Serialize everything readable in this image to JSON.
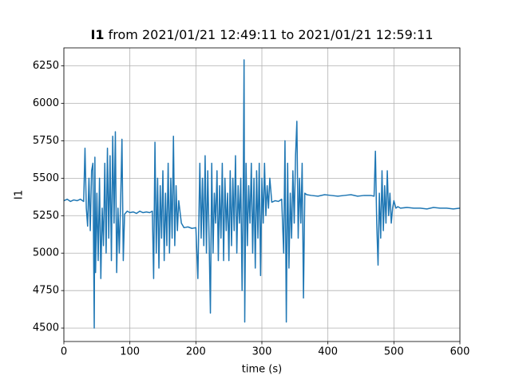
{
  "chart_data": {
    "type": "line",
    "title": [
      "I1",
      "from 2021/01/21 12:49:11 to 2021/01/21 12:59:11"
    ],
    "xlabel": "time (s)",
    "ylabel": "I1",
    "color": "#1f77b4",
    "grid": true,
    "xlim": [
      0,
      600
    ],
    "xticks": [
      0,
      100,
      200,
      300,
      400,
      500,
      600
    ],
    "ylim": [
      4410,
      6370
    ],
    "yticks": [
      4500,
      4750,
      5000,
      5250,
      5500,
      5750,
      6000,
      6250
    ],
    "x": [
      0,
      5,
      10,
      15,
      20,
      25,
      30,
      32,
      34,
      36,
      38,
      40,
      42,
      44,
      46,
      47,
      48,
      50,
      52,
      54,
      56,
      58,
      60,
      62,
      64,
      66,
      68,
      70,
      72,
      74,
      76,
      78,
      80,
      82,
      84,
      86,
      88,
      90,
      92,
      96,
      100,
      105,
      110,
      115,
      120,
      125,
      130,
      134,
      136,
      138,
      140,
      142,
      144,
      146,
      148,
      150,
      152,
      154,
      156,
      158,
      160,
      162,
      164,
      166,
      168,
      170,
      172,
      174,
      178,
      182,
      188,
      194,
      200,
      203,
      206,
      208,
      210,
      212,
      214,
      216,
      218,
      220,
      222,
      224,
      226,
      228,
      230,
      232,
      234,
      236,
      238,
      240,
      242,
      244,
      246,
      248,
      250,
      252,
      254,
      256,
      258,
      260,
      262,
      264,
      266,
      268,
      270,
      272,
      273,
      274,
      276,
      278,
      280,
      282,
      284,
      286,
      288,
      290,
      292,
      294,
      296,
      298,
      300,
      302,
      304,
      306,
      308,
      310,
      312,
      315,
      320,
      325,
      330,
      333,
      335,
      337,
      339,
      341,
      343,
      345,
      347,
      349,
      351,
      353,
      355,
      357,
      359,
      361,
      363,
      365,
      368,
      375,
      385,
      395,
      405,
      415,
      425,
      435,
      445,
      455,
      465,
      470,
      472,
      474,
      476,
      478,
      480,
      482,
      484,
      486,
      488,
      490,
      492,
      494,
      496,
      498,
      500,
      503,
      506,
      510,
      520,
      530,
      540,
      550,
      560,
      570,
      580,
      590,
      600
    ],
    "values": [
      5350,
      5360,
      5345,
      5355,
      5350,
      5360,
      5345,
      5700,
      5300,
      5180,
      5500,
      5150,
      5550,
      5600,
      4500,
      5640,
      4870,
      5400,
      4950,
      5500,
      4830,
      5300,
      5050,
      5600,
      5000,
      5700,
      5100,
      5650,
      4950,
      5780,
      5200,
      5810,
      4870,
      5300,
      5000,
      5350,
      5760,
      4950,
      5260,
      5280,
      5270,
      5275,
      5265,
      5280,
      5270,
      5275,
      5270,
      5280,
      4830,
      5740,
      5000,
      5500,
      4900,
      5450,
      5100,
      5550,
      4950,
      5400,
      5050,
      5600,
      5000,
      5500,
      5100,
      5780,
      5050,
      5450,
      5150,
      5350,
      5200,
      5170,
      5175,
      5165,
      5170,
      4830,
      5600,
      5100,
      5500,
      5050,
      5650,
      5000,
      5550,
      5100,
      4600,
      5600,
      5000,
      5400,
      5200,
      5550,
      4950,
      5450,
      5100,
      5600,
      4950,
      5500,
      5150,
      5400,
      4950,
      5550,
      5050,
      5500,
      5150,
      5650,
      5000,
      5450,
      5200,
      5500,
      4750,
      5550,
      6290,
      4540,
      5600,
      5050,
      5450,
      5200,
      5600,
      5000,
      5500,
      4900,
      5550,
      5100,
      5600,
      4850,
      5500,
      5200,
      5600,
      5250,
      5450,
      5300,
      5500,
      5340,
      5350,
      5345,
      5360,
      5000,
      5750,
      4540,
      5600,
      4900,
      5400,
      5100,
      5550,
      5200,
      5650,
      5880,
      5100,
      5500,
      5200,
      5600,
      4700,
      5400,
      5390,
      5385,
      5380,
      5390,
      5385,
      5380,
      5385,
      5390,
      5380,
      5385,
      5385,
      5380,
      5680,
      5200,
      4920,
      5400,
      5100,
      5550,
      5150,
      5450,
      5200,
      5550,
      5250,
      5400,
      5200,
      5300,
      5350,
      5300,
      5310,
      5300,
      5305,
      5300,
      5300,
      5295,
      5305,
      5300,
      5300,
      5295,
      5300
    ]
  }
}
